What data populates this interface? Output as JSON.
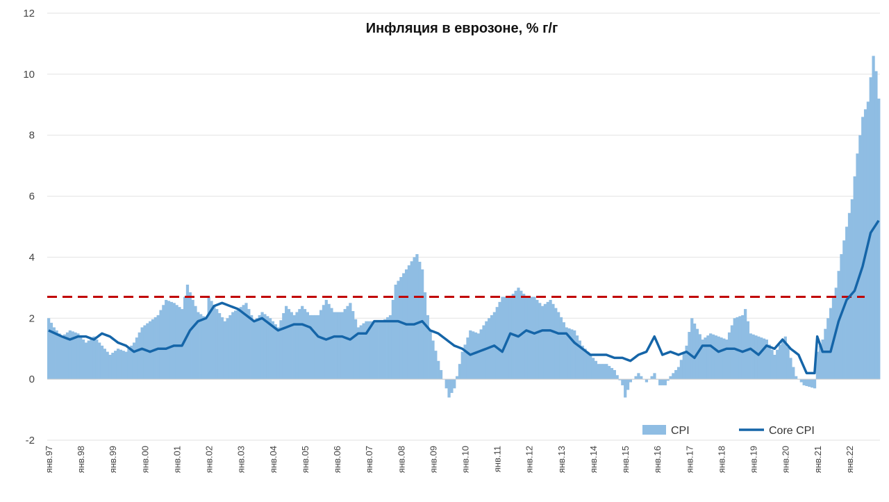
{
  "chart_data": {
    "type": "bar",
    "title": "Инфляция в еврозоне, % г/г",
    "xlabel": "",
    "ylabel": "",
    "ylim": [
      -2,
      12
    ],
    "yticks": [
      "-2",
      "0",
      "2",
      "4",
      "6",
      "8",
      "10",
      "12"
    ],
    "grid": "horizontal",
    "legend_position": "bottom-right",
    "x_start": "1997-01",
    "x_end": "2022-12",
    "xtick_labels": [
      "янв.97",
      "янв.98",
      "янв.99",
      "янв.00",
      "янв.01",
      "янв.02",
      "янв.03",
      "янв.04",
      "янв.05",
      "янв.06",
      "янв.07",
      "янв.08",
      "янв.09",
      "янв.10",
      "янв.11",
      "янв.12",
      "янв.13",
      "янв.14",
      "янв.15",
      "янв.16",
      "янв.17",
      "янв.18",
      "янв.19",
      "янв.20",
      "янв.21",
      "янв.22"
    ],
    "reference_line": {
      "value": 2.7,
      "color": "#c00000",
      "style": "dashed"
    },
    "series": [
      {
        "name": "CPI",
        "kind": "bar",
        "color": "#8fbde3",
        "keypoints": [
          [
            "1997-01",
            2.0
          ],
          [
            "1997-03",
            1.7
          ],
          [
            "1997-06",
            1.4
          ],
          [
            "1997-09",
            1.6
          ],
          [
            "1997-12",
            1.5
          ],
          [
            "1998-03",
            1.2
          ],
          [
            "1998-06",
            1.4
          ],
          [
            "1998-09",
            1.1
          ],
          [
            "1998-12",
            0.8
          ],
          [
            "1999-03",
            1.0
          ],
          [
            "1999-06",
            0.9
          ],
          [
            "1999-09",
            1.2
          ],
          [
            "1999-12",
            1.7
          ],
          [
            "2000-03",
            1.9
          ],
          [
            "2000-06",
            2.1
          ],
          [
            "2000-09",
            2.6
          ],
          [
            "2000-12",
            2.5
          ],
          [
            "2001-03",
            2.3
          ],
          [
            "2001-05",
            3.1
          ],
          [
            "2001-07",
            2.6
          ],
          [
            "2001-09",
            2.2
          ],
          [
            "2001-12",
            2.0
          ],
          [
            "2002-01",
            2.7
          ],
          [
            "2002-04",
            2.3
          ],
          [
            "2002-07",
            1.9
          ],
          [
            "2002-10",
            2.2
          ],
          [
            "2002-12",
            2.3
          ],
          [
            "2003-03",
            2.5
          ],
          [
            "2003-06",
            1.9
          ],
          [
            "2003-09",
            2.2
          ],
          [
            "2003-12",
            2.0
          ],
          [
            "2004-03",
            1.7
          ],
          [
            "2004-06",
            2.4
          ],
          [
            "2004-09",
            2.1
          ],
          [
            "2004-12",
            2.4
          ],
          [
            "2005-03",
            2.1
          ],
          [
            "2005-06",
            2.1
          ],
          [
            "2005-09",
            2.6
          ],
          [
            "2005-12",
            2.2
          ],
          [
            "2006-03",
            2.2
          ],
          [
            "2006-06",
            2.5
          ],
          [
            "2006-09",
            1.7
          ],
          [
            "2006-12",
            1.9
          ],
          [
            "2007-03",
            1.9
          ],
          [
            "2007-06",
            1.9
          ],
          [
            "2007-09",
            2.1
          ],
          [
            "2007-11",
            3.1
          ],
          [
            "2008-03",
            3.6
          ],
          [
            "2008-06",
            4.0
          ],
          [
            "2008-07",
            4.1
          ],
          [
            "2008-09",
            3.6
          ],
          [
            "2008-11",
            2.1
          ],
          [
            "2008-12",
            1.6
          ],
          [
            "2009-03",
            0.6
          ],
          [
            "2009-05",
            0.0
          ],
          [
            "2009-07",
            -0.6
          ],
          [
            "2009-09",
            -0.3
          ],
          [
            "2009-11",
            0.5
          ],
          [
            "2009-12",
            0.9
          ],
          [
            "2010-03",
            1.6
          ],
          [
            "2010-06",
            1.5
          ],
          [
            "2010-09",
            1.9
          ],
          [
            "2010-12",
            2.2
          ],
          [
            "2011-03",
            2.7
          ],
          [
            "2011-06",
            2.7
          ],
          [
            "2011-09",
            3.0
          ],
          [
            "2011-12",
            2.7
          ],
          [
            "2012-03",
            2.7
          ],
          [
            "2012-06",
            2.4
          ],
          [
            "2012-09",
            2.6
          ],
          [
            "2012-12",
            2.2
          ],
          [
            "2013-03",
            1.7
          ],
          [
            "2013-06",
            1.6
          ],
          [
            "2013-09",
            1.1
          ],
          [
            "2013-12",
            0.8
          ],
          [
            "2014-03",
            0.5
          ],
          [
            "2014-06",
            0.5
          ],
          [
            "2014-09",
            0.3
          ],
          [
            "2014-12",
            -0.2
          ],
          [
            "2015-01",
            -0.6
          ],
          [
            "2015-03",
            -0.1
          ],
          [
            "2015-06",
            0.2
          ],
          [
            "2015-09",
            -0.1
          ],
          [
            "2015-12",
            0.2
          ],
          [
            "2016-02",
            -0.2
          ],
          [
            "2016-04",
            -0.2
          ],
          [
            "2016-06",
            0.1
          ],
          [
            "2016-09",
            0.4
          ],
          [
            "2016-12",
            1.1
          ],
          [
            "2017-02",
            2.0
          ],
          [
            "2017-06",
            1.3
          ],
          [
            "2017-09",
            1.5
          ],
          [
            "2017-12",
            1.4
          ],
          [
            "2018-03",
            1.3
          ],
          [
            "2018-06",
            2.0
          ],
          [
            "2018-09",
            2.1
          ],
          [
            "2018-10",
            2.3
          ],
          [
            "2018-12",
            1.5
          ],
          [
            "2019-03",
            1.4
          ],
          [
            "2019-06",
            1.3
          ],
          [
            "2019-09",
            0.8
          ],
          [
            "2019-12",
            1.3
          ],
          [
            "2020-01",
            1.4
          ],
          [
            "2020-03",
            0.7
          ],
          [
            "2020-05",
            0.1
          ],
          [
            "2020-08",
            -0.2
          ],
          [
            "2020-12",
            -0.3
          ],
          [
            "2021-01",
            0.9
          ],
          [
            "2021-03",
            1.3
          ],
          [
            "2021-05",
            2.0
          ],
          [
            "2021-08",
            3.0
          ],
          [
            "2021-10",
            4.1
          ],
          [
            "2021-12",
            5.0
          ],
          [
            "2022-02",
            5.9
          ],
          [
            "2022-04",
            7.4
          ],
          [
            "2022-06",
            8.6
          ],
          [
            "2022-08",
            9.1
          ],
          [
            "2022-09",
            9.9
          ],
          [
            "2022-10",
            10.6
          ],
          [
            "2022-11",
            10.1
          ],
          [
            "2022-12",
            9.2
          ]
        ]
      },
      {
        "name": "Core CPI",
        "kind": "line",
        "color": "#1565a8",
        "keypoints": [
          [
            "1997-01",
            1.6
          ],
          [
            "1997-06",
            1.4
          ],
          [
            "1997-09",
            1.3
          ],
          [
            "1997-12",
            1.4
          ],
          [
            "1998-03",
            1.4
          ],
          [
            "1998-06",
            1.3
          ],
          [
            "1998-09",
            1.5
          ],
          [
            "1998-12",
            1.4
          ],
          [
            "1999-03",
            1.2
          ],
          [
            "1999-06",
            1.1
          ],
          [
            "1999-09",
            0.9
          ],
          [
            "1999-12",
            1.0
          ],
          [
            "2000-03",
            0.9
          ],
          [
            "2000-06",
            1.0
          ],
          [
            "2000-09",
            1.0
          ],
          [
            "2000-12",
            1.1
          ],
          [
            "2001-03",
            1.1
          ],
          [
            "2001-06",
            1.6
          ],
          [
            "2001-09",
            1.9
          ],
          [
            "2001-12",
            2.0
          ],
          [
            "2002-03",
            2.4
          ],
          [
            "2002-06",
            2.5
          ],
          [
            "2002-09",
            2.4
          ],
          [
            "2002-12",
            2.3
          ],
          [
            "2003-03",
            2.1
          ],
          [
            "2003-06",
            1.9
          ],
          [
            "2003-09",
            2.0
          ],
          [
            "2003-12",
            1.8
          ],
          [
            "2004-03",
            1.6
          ],
          [
            "2004-06",
            1.7
          ],
          [
            "2004-09",
            1.8
          ],
          [
            "2004-12",
            1.8
          ],
          [
            "2005-03",
            1.7
          ],
          [
            "2005-06",
            1.4
          ],
          [
            "2005-09",
            1.3
          ],
          [
            "2005-12",
            1.4
          ],
          [
            "2006-03",
            1.4
          ],
          [
            "2006-06",
            1.3
          ],
          [
            "2006-09",
            1.5
          ],
          [
            "2006-12",
            1.5
          ],
          [
            "2007-03",
            1.9
          ],
          [
            "2007-06",
            1.9
          ],
          [
            "2007-09",
            1.9
          ],
          [
            "2007-12",
            1.9
          ],
          [
            "2008-03",
            1.8
          ],
          [
            "2008-06",
            1.8
          ],
          [
            "2008-09",
            1.9
          ],
          [
            "2008-12",
            1.6
          ],
          [
            "2009-03",
            1.5
          ],
          [
            "2009-06",
            1.3
          ],
          [
            "2009-09",
            1.1
          ],
          [
            "2009-12",
            1.0
          ],
          [
            "2010-03",
            0.8
          ],
          [
            "2010-06",
            0.9
          ],
          [
            "2010-09",
            1.0
          ],
          [
            "2010-12",
            1.1
          ],
          [
            "2011-03",
            0.9
          ],
          [
            "2011-06",
            1.5
          ],
          [
            "2011-09",
            1.4
          ],
          [
            "2011-12",
            1.6
          ],
          [
            "2012-03",
            1.5
          ],
          [
            "2012-06",
            1.6
          ],
          [
            "2012-09",
            1.6
          ],
          [
            "2012-12",
            1.5
          ],
          [
            "2013-03",
            1.5
          ],
          [
            "2013-06",
            1.2
          ],
          [
            "2013-09",
            1.0
          ],
          [
            "2013-12",
            0.8
          ],
          [
            "2014-03",
            0.8
          ],
          [
            "2014-06",
            0.8
          ],
          [
            "2014-09",
            0.7
          ],
          [
            "2014-12",
            0.7
          ],
          [
            "2015-03",
            0.6
          ],
          [
            "2015-06",
            0.8
          ],
          [
            "2015-09",
            0.9
          ],
          [
            "2015-12",
            1.4
          ],
          [
            "2016-01",
            1.2
          ],
          [
            "2016-03",
            0.8
          ],
          [
            "2016-06",
            0.9
          ],
          [
            "2016-09",
            0.8
          ],
          [
            "2016-12",
            0.9
          ],
          [
            "2017-03",
            0.7
          ],
          [
            "2017-06",
            1.1
          ],
          [
            "2017-09",
            1.1
          ],
          [
            "2017-12",
            0.9
          ],
          [
            "2018-03",
            1.0
          ],
          [
            "2018-06",
            1.0
          ],
          [
            "2018-09",
            0.9
          ],
          [
            "2018-12",
            1.0
          ],
          [
            "2019-03",
            0.8
          ],
          [
            "2019-06",
            1.1
          ],
          [
            "2019-09",
            1.0
          ],
          [
            "2019-12",
            1.3
          ],
          [
            "2020-01",
            1.2
          ],
          [
            "2020-03",
            1.0
          ],
          [
            "2020-06",
            0.8
          ],
          [
            "2020-09",
            0.2
          ],
          [
            "2020-12",
            0.2
          ],
          [
            "2021-01",
            1.4
          ],
          [
            "2021-03",
            0.9
          ],
          [
            "2021-06",
            0.9
          ],
          [
            "2021-09",
            1.9
          ],
          [
            "2021-12",
            2.6
          ],
          [
            "2022-03",
            2.9
          ],
          [
            "2022-06",
            3.7
          ],
          [
            "2022-09",
            4.8
          ],
          [
            "2022-12",
            5.2
          ]
        ]
      }
    ]
  }
}
